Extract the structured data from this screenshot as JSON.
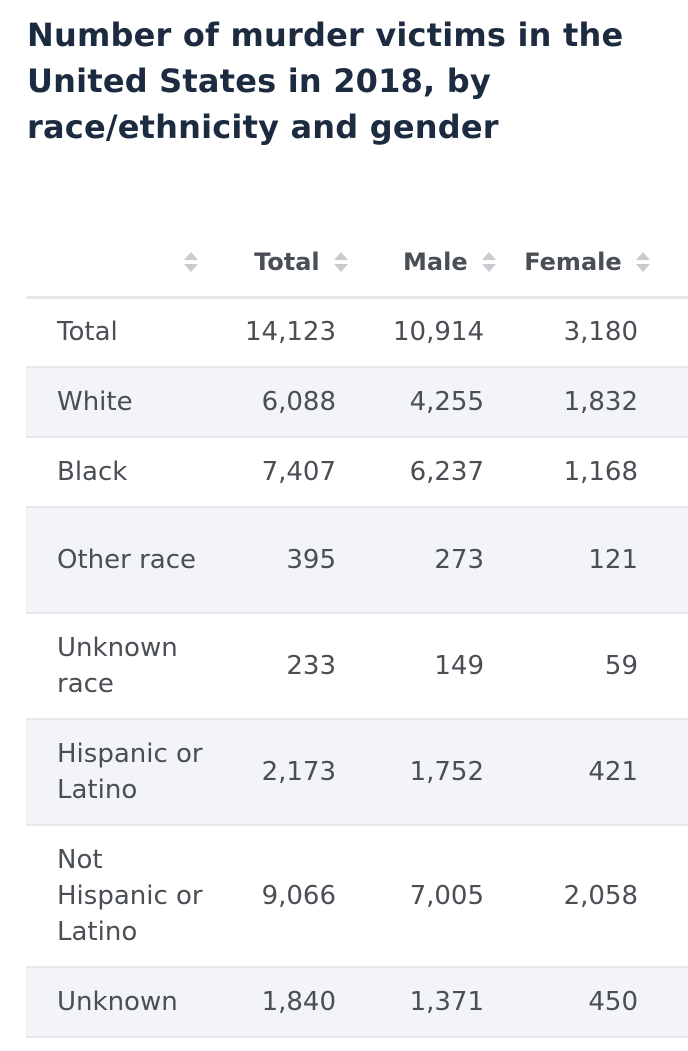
{
  "title": "Number of murder victims in the United States in 2018, by race/ethnicity and gender",
  "columns": [
    "",
    "Total",
    "Male",
    "Female"
  ],
  "chart_data": {
    "type": "table",
    "title": "Number of murder victims in the United States in 2018, by race/ethnicity and gender",
    "columns": [
      "",
      "Total",
      "Male",
      "Female"
    ],
    "rows": [
      {
        "label": "Total",
        "total": "14,123",
        "male": "10,914",
        "female": "3,180"
      },
      {
        "label": "White",
        "total": "6,088",
        "male": "4,255",
        "female": "1,832"
      },
      {
        "label": "Black",
        "total": "7,407",
        "male": "6,237",
        "female": "1,168"
      },
      {
        "label": "Other race",
        "total": "395",
        "male": "273",
        "female": "121"
      },
      {
        "label": "Unknown race",
        "total": "233",
        "male": "149",
        "female": "59"
      },
      {
        "label": "Hispanic or Latino",
        "total": "2,173",
        "male": "1,752",
        "female": "421"
      },
      {
        "label": "Not Hispanic or Latino",
        "total": "9,066",
        "male": "7,005",
        "female": "2,058"
      },
      {
        "label": "Unknown",
        "total": "1,840",
        "male": "1,371",
        "female": "450"
      }
    ]
  }
}
